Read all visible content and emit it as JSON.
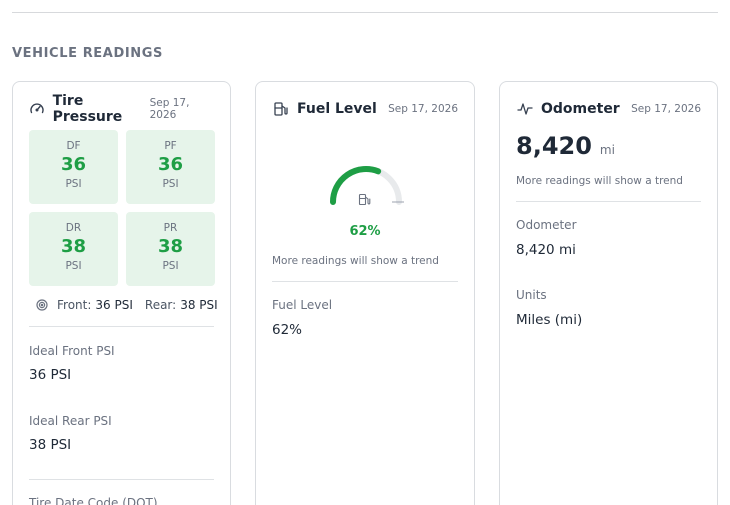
{
  "section": {
    "title": "VEHICLE READINGS"
  },
  "colors": {
    "accent_green": "#1e9e45",
    "tile_bg": "#e6f4ea"
  },
  "tire_card": {
    "icon": "gauge-icon",
    "title": "Tire Pressure",
    "date": "Sep 17, 2026",
    "tires": [
      {
        "pos": "DF",
        "value": "36",
        "unit": "PSI"
      },
      {
        "pos": "PF",
        "value": "36",
        "unit": "PSI"
      },
      {
        "pos": "DR",
        "value": "38",
        "unit": "PSI"
      },
      {
        "pos": "PR",
        "value": "38",
        "unit": "PSI"
      }
    ],
    "summary": {
      "front_label": "Front:",
      "front_value": "36 PSI",
      "rear_label": "Rear:",
      "rear_value": "38 PSI"
    },
    "fields": [
      {
        "label": "Ideal Front PSI",
        "value": "36 PSI"
      },
      {
        "label": "Ideal Rear PSI",
        "value": "38 PSI"
      }
    ],
    "partial_label": "Tire Date Code (DOT)"
  },
  "fuel_card": {
    "icon": "fuel-pump-icon",
    "title": "Fuel Level",
    "date": "Sep 17, 2026",
    "level_fraction": 0.62,
    "percent_text": "62%",
    "trend_note": "More readings will show a trend",
    "field": {
      "label": "Fuel Level",
      "value": "62%"
    }
  },
  "odometer_card": {
    "icon": "activity-icon",
    "title": "Odometer",
    "date": "Sep 17, 2026",
    "reading": "8,420",
    "unit": "mi",
    "trend_note": "More readings will show a trend",
    "fields": [
      {
        "label": "Odometer",
        "value": "8,420 mi"
      },
      {
        "label": "Units",
        "value": "Miles (mi)"
      }
    ]
  }
}
